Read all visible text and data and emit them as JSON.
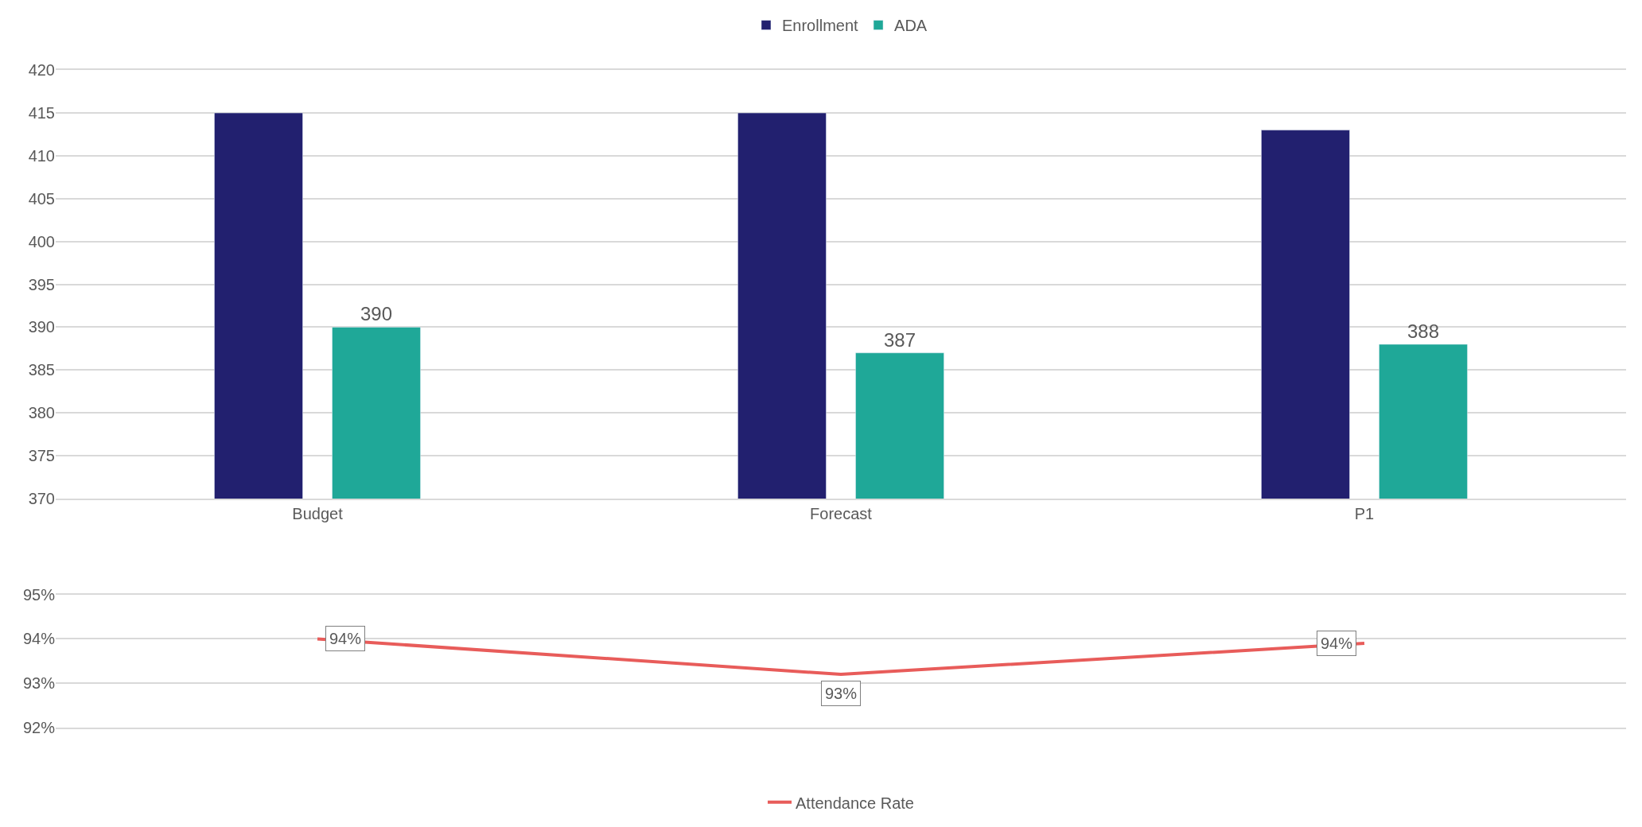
{
  "chart_data": [
    {
      "type": "bar",
      "categories": [
        "Budget",
        "Forecast",
        "P1"
      ],
      "series": [
        {
          "name": "Enrollment",
          "color": "#22206f",
          "values": [
            415,
            415,
            413
          ]
        },
        {
          "name": "ADA",
          "color": "#1fa898",
          "values": [
            390,
            387,
            388
          ],
          "value_labels": [
            "390",
            "387",
            "388"
          ]
        }
      ],
      "ylim": [
        370,
        420
      ],
      "yticks": [
        370,
        375,
        380,
        385,
        390,
        395,
        400,
        405,
        410,
        415,
        420
      ],
      "grid": "y",
      "legend": "top"
    },
    {
      "type": "line",
      "categories": [
        null,
        null,
        null
      ],
      "series": [
        {
          "name": "Attendance Rate",
          "color": "#e85c5a",
          "values": [
            94.0,
            93.2,
            93.9
          ],
          "value_labels": [
            "94%",
            "93%",
            "94%"
          ]
        }
      ],
      "ylim": [
        92,
        95
      ],
      "yticks": [
        {
          "value": 92,
          "label": "92%"
        },
        {
          "value": 93,
          "label": "93%"
        },
        {
          "value": 94,
          "label": "94%"
        },
        {
          "value": 95,
          "label": "95%"
        }
      ],
      "grid": "y",
      "legend": "bottom",
      "tick_labels": "y",
      "marker": "none",
      "line_style": "solid"
    }
  ]
}
